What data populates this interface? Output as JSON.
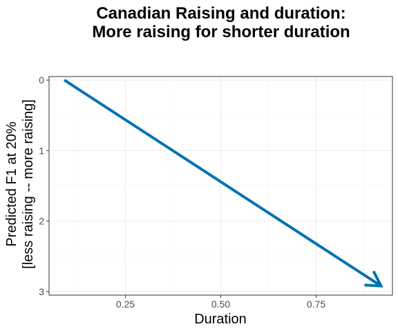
{
  "chart_data": {
    "type": "line",
    "title": [
      "Canadian Raising and duration:",
      "More raising for shorter duration"
    ],
    "xlabel": "Duration",
    "ylabel": [
      "Predicted F1 at 20%",
      "[less raising -- more raising]"
    ],
    "x_ticks": [
      0.25,
      0.5,
      0.75
    ],
    "x_tick_labels": [
      "0.25",
      "0.50",
      "0.75"
    ],
    "y_ticks": [
      0,
      1,
      2,
      3
    ],
    "y_tick_labels": [
      "0",
      "1",
      "2",
      "3"
    ],
    "xlim": [
      0.05,
      0.95
    ],
    "ylim": [
      3.05,
      -0.05
    ],
    "y_reversed": true,
    "grid": true,
    "series": [
      {
        "x": [
          0.09,
          0.92
        ],
        "y": [
          0.0,
          2.92
        ],
        "color": "#0072B2",
        "arrow_at_end": true
      }
    ]
  }
}
